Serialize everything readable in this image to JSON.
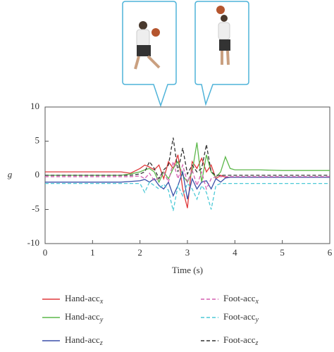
{
  "chart_data": {
    "type": "line",
    "xlabel": "Time (s)",
    "ylabel": "g",
    "x": [
      0,
      0.5,
      1,
      1.5,
      1.6,
      1.8,
      2.0,
      2.1,
      2.2,
      2.3,
      2.4,
      2.5,
      2.6,
      2.7,
      2.8,
      2.9,
      3.0,
      3.1,
      3.2,
      3.3,
      3.4,
      3.5,
      3.6,
      3.7,
      3.8,
      3.9,
      4.0,
      4.5,
      5,
      5.5,
      6
    ],
    "series": [
      {
        "name": "Hand-acc",
        "subscript": "x",
        "color": "#e0393b",
        "dashed": false,
        "values": [
          0.5,
          0.5,
          0.5,
          0.5,
          0.5,
          0.3,
          1.0,
          1.5,
          1.2,
          0.8,
          1.5,
          -0.5,
          2.0,
          1.0,
          3.0,
          -2.0,
          -4.8,
          2.0,
          1.0,
          2.5,
          0.5,
          1.5,
          -0.5,
          0,
          -0.3,
          -0.3,
          -0.3,
          -0.3,
          -0.3,
          -0.3,
          -0.3
        ]
      },
      {
        "name": "Hand-acc",
        "subscript": "y",
        "color": "#5cb84a",
        "dashed": false,
        "values": [
          0,
          0,
          0,
          0,
          0,
          0.2,
          0.5,
          0.8,
          1.0,
          0.5,
          -1.0,
          0.5,
          -0.5,
          1.0,
          2.0,
          0,
          -1.0,
          0.5,
          4.8,
          -1.0,
          3.0,
          0.5,
          -0.3,
          0.5,
          2.7,
          1.0,
          0.8,
          0.8,
          0.7,
          0.7,
          0.7
        ]
      },
      {
        "name": "Hand-acc",
        "subscript": "z",
        "color": "#3a4fa8",
        "dashed": false,
        "values": [
          -1,
          -1,
          -1,
          -1,
          -1,
          -0.9,
          -0.8,
          -0.6,
          -1.0,
          -0.5,
          -1.5,
          -2,
          -1,
          -3,
          -1.5,
          0.5,
          -3.5,
          -0.5,
          -2,
          -1,
          -0.8,
          -2,
          -0.5,
          -1,
          -0.4,
          -0.3,
          -0.3,
          -0.3,
          -0.3,
          -0.3,
          -0.3
        ]
      },
      {
        "name": "Foot-acc",
        "subscript": "x",
        "color": "#d45fb0",
        "dashed": true,
        "values": [
          -0.2,
          -0.2,
          -0.2,
          -0.2,
          -0.2,
          -0.2,
          -0.1,
          -0.5,
          0.3,
          -0.8,
          -0.3,
          0.5,
          -1.0,
          2.0,
          -0.5,
          1.5,
          -1.0,
          0.8,
          -1.5,
          0.5,
          -2.0,
          -0.5,
          -0.2,
          -0.2,
          -0.2,
          -0.2,
          -0.2,
          -0.2,
          -0.2,
          -0.2,
          -0.2
        ]
      },
      {
        "name": "Foot-acc",
        "subscript": "y",
        "color": "#4cc9d6",
        "dashed": true,
        "values": [
          -1.2,
          -1.2,
          -1.2,
          -1.2,
          -1.2,
          -1.2,
          -1.2,
          -2.5,
          -1.0,
          -1.5,
          -2.0,
          -1.3,
          -2.2,
          -5.2,
          -1.5,
          -3.0,
          -1.2,
          -2.0,
          -3.5,
          -1.5,
          -2.5,
          -5.0,
          -1.5,
          -1.2,
          -1.2,
          -1.2,
          -1.2,
          -1.2,
          -1.2,
          -1.2,
          -1.2
        ]
      },
      {
        "name": "Foot-acc",
        "subscript": "z",
        "color": "#333333",
        "dashed": true,
        "values": [
          0,
          0,
          0,
          0,
          0,
          0,
          0.2,
          0.5,
          2.0,
          1.0,
          -0.5,
          0.8,
          1.5,
          5.5,
          0.5,
          4.0,
          0.2,
          1.5,
          0.5,
          1.0,
          4.5,
          0.5,
          0,
          0,
          0,
          0,
          0,
          0,
          0,
          0,
          0
        ]
      }
    ],
    "xlim": [
      0,
      6
    ],
    "ylim": [
      -10,
      10
    ],
    "xticks": [
      0,
      1,
      2,
      3,
      4,
      5,
      6
    ],
    "yticks": [
      -10,
      -5,
      0,
      5,
      10
    ]
  }
}
